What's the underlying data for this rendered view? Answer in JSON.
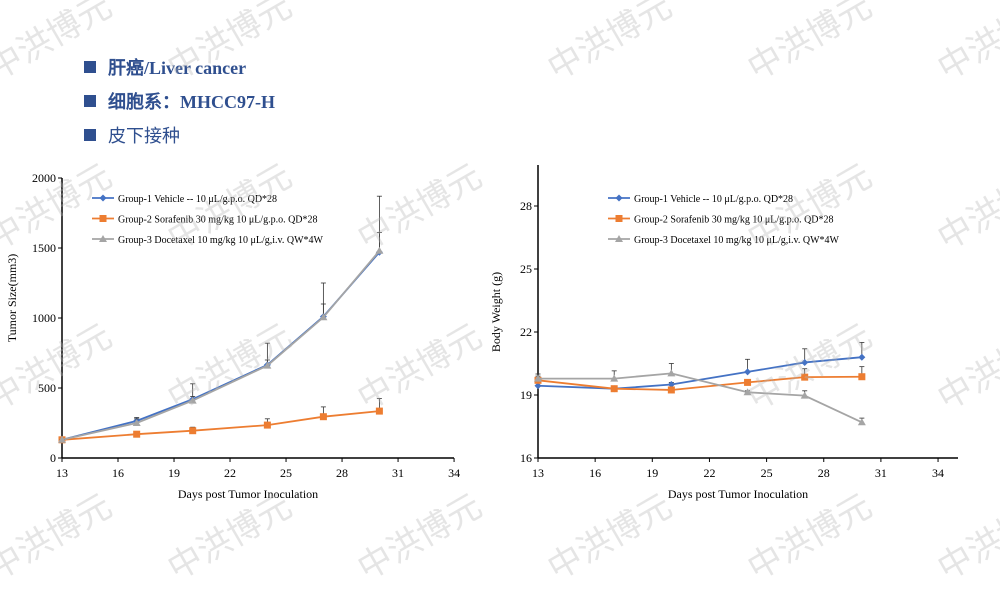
{
  "bullets": [
    "肝癌/Liver cancer",
    "细胞系：MHCC97-H",
    "皮下接种"
  ],
  "watermark": "中洪博元",
  "colors": {
    "group1": "#4472c4",
    "group2": "#ed7d31",
    "group3": "#a5a5a5",
    "bullet": "#2f4f8f"
  },
  "chart_data": [
    {
      "type": "line",
      "xlabel": "Days post Tumor Inoculation",
      "ylabel": "Tumor Size(mm3)",
      "xlim": [
        13,
        34
      ],
      "xticks": [
        13,
        16,
        19,
        22,
        25,
        28,
        31,
        34
      ],
      "ylim": [
        0,
        2000
      ],
      "yticks": [
        0,
        500,
        1000,
        1500,
        2000
      ],
      "grid": false,
      "legend": "top-left",
      "x": [
        13,
        17,
        20,
        24,
        27,
        30
      ],
      "series": [
        {
          "name": "Group-1 Vehicle -- 10 μL/g.p.o. QD*28",
          "marker": "diamond",
          "values": [
            130,
            265,
            420,
            665,
            1010,
            1470
          ],
          "error_upper": [
            130,
            290,
            530,
            820,
            1250,
            1870
          ]
        },
        {
          "name": "Group-2 Sorafenib 30 mg/kg 10 μL/g.p.o. QD*28",
          "marker": "square",
          "values": [
            130,
            170,
            195,
            235,
            295,
            335
          ],
          "error_upper": [
            130,
            180,
            220,
            280,
            365,
            425
          ]
        },
        {
          "name": "Group-3 Docetaxel 10 mg/kg 10 μL/g,i.v. QW*4W",
          "marker": "triangle",
          "values": [
            130,
            250,
            410,
            660,
            1005,
            1480
          ],
          "error_upper": [
            130,
            280,
            440,
            700,
            1100,
            1610
          ]
        }
      ]
    },
    {
      "type": "line",
      "xlabel": "Days post Tumor Inoculation",
      "ylabel": "Body Weight (g)",
      "xlim": [
        13,
        34
      ],
      "xticks": [
        13,
        16,
        19,
        22,
        25,
        28,
        31,
        34
      ],
      "ylim": [
        16,
        29
      ],
      "yticks": [
        16,
        19,
        22,
        25,
        28
      ],
      "grid": false,
      "legend": "top-left",
      "x": [
        13,
        17,
        20,
        24,
        27,
        30
      ],
      "series": [
        {
          "name": "Group-1 Vehicle -- 10 μL/g.p.o. QD*28",
          "marker": "diamond",
          "values": [
            19.44,
            19.3,
            19.5,
            20.1,
            20.55,
            20.8
          ],
          "error_upper": [
            19.6,
            19.4,
            19.6,
            20.7,
            21.2,
            21.5
          ]
        },
        {
          "name": "Group-2 Sorafenib 30 mg/kg 10 μL/g.p.o. QD*28",
          "marker": "square",
          "values": [
            19.7,
            19.3,
            19.24,
            19.6,
            19.85,
            19.87
          ],
          "error_upper": [
            19.9,
            19.4,
            19.3,
            19.7,
            20.25,
            20.35
          ]
        },
        {
          "name": "Group-3 Docetaxel 10 mg/kg 10 μL/g,i.v. QW*4W",
          "marker": "triangle",
          "values": [
            19.78,
            19.78,
            20.03,
            19.13,
            18.97,
            17.7
          ],
          "error_upper": [
            20.0,
            20.15,
            20.5,
            19.2,
            19.2,
            17.9
          ]
        }
      ]
    }
  ]
}
